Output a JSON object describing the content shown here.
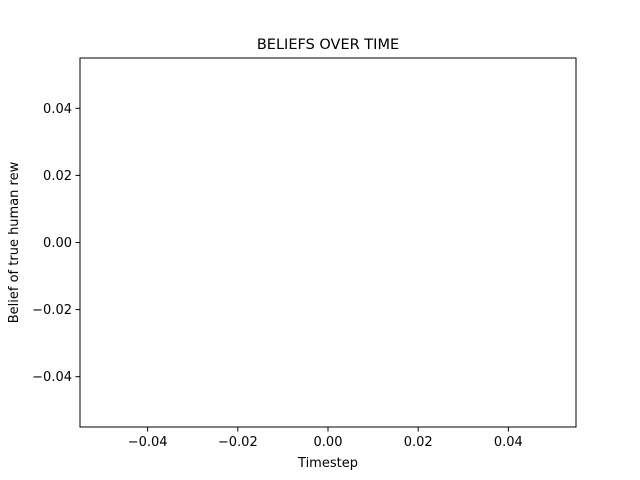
{
  "chart_data": {
    "type": "line",
    "title": "BELIEFS OVER TIME",
    "xlabel": "Timestep",
    "ylabel": "Belief of true human rew",
    "xlim": [
      -0.055,
      0.055
    ],
    "ylim": [
      -0.055,
      0.055
    ],
    "xticks": [
      -0.04,
      -0.02,
      0.0,
      0.02,
      0.04
    ],
    "yticks": [
      -0.04,
      -0.02,
      0.0,
      0.02,
      0.04
    ],
    "xtick_labels": [
      "−0.04",
      "−0.02",
      "0.00",
      "0.02",
      "0.04"
    ],
    "ytick_labels": [
      "−0.04",
      "−0.02",
      "0.00",
      "0.02",
      "0.04"
    ],
    "grid": false,
    "series": []
  }
}
